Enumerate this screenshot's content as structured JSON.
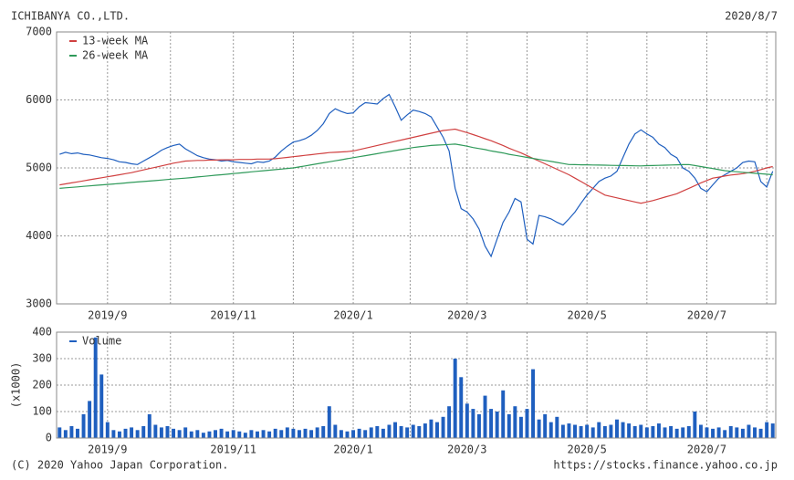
{
  "header": {
    "title": "ICHIBANYA CO.,LTD.",
    "date": "2020/8/7"
  },
  "footer": {
    "copyright": "(C) 2020 Yahoo Japan Corporation.",
    "url": "https://stocks.finance.yahoo.co.jp"
  },
  "chart_data": [
    {
      "type": "line",
      "categories": [
        null,
        null,
        null,
        null,
        null,
        null,
        null,
        null,
        "2019/9",
        null,
        null,
        null,
        null,
        null,
        null,
        null,
        null,
        null,
        null,
        null,
        null,
        null,
        null,
        null,
        null,
        null,
        null,
        null,
        null,
        "2019/11",
        null,
        null,
        null,
        null,
        null,
        null,
        null,
        null,
        null,
        null,
        null,
        null,
        null,
        null,
        null,
        null,
        null,
        null,
        null,
        "2020/1",
        null,
        null,
        null,
        null,
        null,
        null,
        null,
        null,
        null,
        null,
        null,
        null,
        null,
        null,
        null,
        null,
        null,
        null,
        "2020/3",
        null,
        null,
        null,
        null,
        null,
        null,
        null,
        null,
        null,
        null,
        null,
        null,
        null,
        null,
        null,
        null,
        null,
        null,
        null,
        "2020/5",
        null,
        null,
        null,
        null,
        null,
        null,
        null,
        null,
        null,
        null,
        null,
        null,
        null,
        null,
        null,
        null,
        null,
        null,
        null,
        "2020/7",
        null,
        null,
        null,
        null,
        null,
        null,
        null,
        null,
        null,
        null,
        null
      ],
      "series": [
        {
          "color": "#1f5fbf",
          "values": [
            5200,
            5230,
            5210,
            5220,
            5200,
            5190,
            5170,
            5150,
            5140,
            5120,
            5090,
            5080,
            5060,
            5050,
            5100,
            5150,
            5200,
            5260,
            5300,
            5330,
            5350,
            5280,
            5230,
            5180,
            5150,
            5130,
            5120,
            5100,
            5110,
            5090,
            5080,
            5070,
            5060,
            5090,
            5080,
            5100,
            5160,
            5250,
            5320,
            5380,
            5400,
            5430,
            5480,
            5550,
            5650,
            5800,
            5870,
            5830,
            5800,
            5810,
            5900,
            5960,
            5950,
            5940,
            6020,
            6080,
            5900,
            5700,
            5780,
            5850,
            5830,
            5800,
            5750,
            5600,
            5450,
            5250,
            4700,
            4400,
            4350,
            4250,
            4100,
            3850,
            3700,
            3950,
            4200,
            4350,
            4550,
            4500,
            3950,
            3880,
            4300,
            4280,
            4250,
            4200,
            4160,
            4250,
            4350,
            4480,
            4600,
            4700,
            4800,
            4850,
            4880,
            4950,
            5150,
            5350,
            5500,
            5560,
            5500,
            5450,
            5350,
            5300,
            5200,
            5150,
            5000,
            4950,
            4850,
            4700,
            4650,
            4750,
            4850,
            4900,
            4950,
            5000,
            5080,
            5100,
            5090,
            4800,
            4720,
            4950
          ]
        },
        {
          "name": "13-week MA",
          "color": "#d04040",
          "values": [
            4750,
            4765,
            4780,
            4795,
            4810,
            4825,
            4840,
            4855,
            4870,
            4885,
            4900,
            4915,
            4930,
            4950,
            4970,
            4990,
            5010,
            5030,
            5050,
            5070,
            5085,
            5100,
            5105,
            5110,
            5110,
            5115,
            5115,
            5120,
            5120,
            5120,
            5125,
            5125,
            5125,
            5130,
            5130,
            5130,
            5135,
            5145,
            5155,
            5165,
            5175,
            5185,
            5195,
            5205,
            5215,
            5225,
            5230,
            5235,
            5240,
            5250,
            5270,
            5290,
            5310,
            5330,
            5350,
            5370,
            5390,
            5410,
            5430,
            5450,
            5470,
            5490,
            5510,
            5530,
            5550,
            5560,
            5570,
            5545,
            5520,
            5490,
            5460,
            5430,
            5400,
            5365,
            5330,
            5290,
            5255,
            5220,
            5180,
            5140,
            5100,
            5060,
            5020,
            4980,
            4940,
            4900,
            4850,
            4800,
            4750,
            4700,
            4650,
            4600,
            4580,
            4560,
            4540,
            4520,
            4500,
            4480,
            4500,
            4520,
            4545,
            4570,
            4595,
            4620,
            4660,
            4700,
            4740,
            4780,
            4815,
            4850,
            4865,
            4880,
            4895,
            4905,
            4915,
            4930,
            4950,
            4975,
            5000,
            5020
          ]
        },
        {
          "name": "26-week MA",
          "color": "#2f9a5a",
          "values": [
            4700,
            4707,
            4714,
            4721,
            4729,
            4736,
            4743,
            4750,
            4757,
            4764,
            4771,
            4779,
            4786,
            4793,
            4800,
            4807,
            4814,
            4821,
            4829,
            4836,
            4843,
            4850,
            4858,
            4867,
            4875,
            4883,
            4892,
            4900,
            4908,
            4917,
            4925,
            4933,
            4942,
            4950,
            4958,
            4967,
            4975,
            4983,
            4992,
            5000,
            5015,
            5030,
            5045,
            5060,
            5075,
            5090,
            5105,
            5120,
            5135,
            5150,
            5165,
            5180,
            5195,
            5210,
            5225,
            5240,
            5255,
            5270,
            5285,
            5300,
            5310,
            5320,
            5330,
            5335,
            5340,
            5345,
            5350,
            5335,
            5320,
            5300,
            5285,
            5270,
            5250,
            5235,
            5220,
            5200,
            5185,
            5170,
            5155,
            5140,
            5125,
            5110,
            5095,
            5080,
            5065,
            5050,
            5048,
            5046,
            5045,
            5043,
            5041,
            5040,
            5038,
            5036,
            5035,
            5033,
            5031,
            5030,
            5033,
            5035,
            5038,
            5040,
            5043,
            5045,
            5048,
            5050,
            5035,
            5020,
            5005,
            4990,
            4975,
            4960,
            4950,
            4943,
            4936,
            4929,
            4921,
            4914,
            4907,
            4900
          ]
        }
      ],
      "ylim": [
        3000,
        7000
      ],
      "yticks": [
        3000,
        4000,
        5000,
        6000,
        7000
      ],
      "grid": true,
      "legend": "top-left"
    },
    {
      "type": "bar",
      "ylabel": "(x1000)",
      "categories": [
        null,
        null,
        null,
        null,
        null,
        null,
        null,
        null,
        "2019/9",
        null,
        null,
        null,
        null,
        null,
        null,
        null,
        null,
        null,
        null,
        null,
        null,
        null,
        null,
        null,
        null,
        null,
        null,
        null,
        null,
        "2019/11",
        null,
        null,
        null,
        null,
        null,
        null,
        null,
        null,
        null,
        null,
        null,
        null,
        null,
        null,
        null,
        null,
        null,
        null,
        null,
        "2020/1",
        null,
        null,
        null,
        null,
        null,
        null,
        null,
        null,
        null,
        null,
        null,
        null,
        null,
        null,
        null,
        null,
        null,
        null,
        "2020/3",
        null,
        null,
        null,
        null,
        null,
        null,
        null,
        null,
        null,
        null,
        null,
        null,
        null,
        null,
        null,
        null,
        null,
        null,
        null,
        "2020/5",
        null,
        null,
        null,
        null,
        null,
        null,
        null,
        null,
        null,
        null,
        null,
        null,
        null,
        null,
        null,
        null,
        null,
        null,
        null,
        "2020/7",
        null,
        null,
        null,
        null,
        null,
        null,
        null,
        null,
        null,
        null,
        null
      ],
      "series": [
        {
          "name": "Volume",
          "color": "#1f5fbf",
          "values": [
            40,
            30,
            45,
            35,
            90,
            140,
            380,
            240,
            60,
            30,
            25,
            35,
            40,
            30,
            45,
            90,
            50,
            40,
            45,
            35,
            30,
            40,
            25,
            30,
            20,
            25,
            30,
            35,
            25,
            30,
            25,
            20,
            30,
            25,
            30,
            25,
            35,
            30,
            40,
            35,
            30,
            35,
            30,
            40,
            45,
            120,
            50,
            30,
            25,
            30,
            35,
            30,
            40,
            45,
            35,
            50,
            60,
            45,
            40,
            50,
            45,
            55,
            70,
            60,
            80,
            120,
            300,
            230,
            130,
            110,
            90,
            160,
            110,
            100,
            180,
            90,
            120,
            80,
            110,
            260,
            70,
            90,
            60,
            80,
            50,
            55,
            50,
            45,
            50,
            40,
            60,
            45,
            50,
            70,
            60,
            55,
            45,
            50,
            40,
            45,
            55,
            40,
            45,
            35,
            40,
            45,
            100,
            50,
            40,
            35,
            40,
            30,
            45,
            40,
            35,
            50,
            40,
            35,
            60,
            55
          ]
        }
      ],
      "ylim": [
        0,
        400
      ],
      "yticks": [
        0,
        100,
        200,
        300,
        400
      ],
      "grid": true,
      "legend": "top-left"
    }
  ]
}
